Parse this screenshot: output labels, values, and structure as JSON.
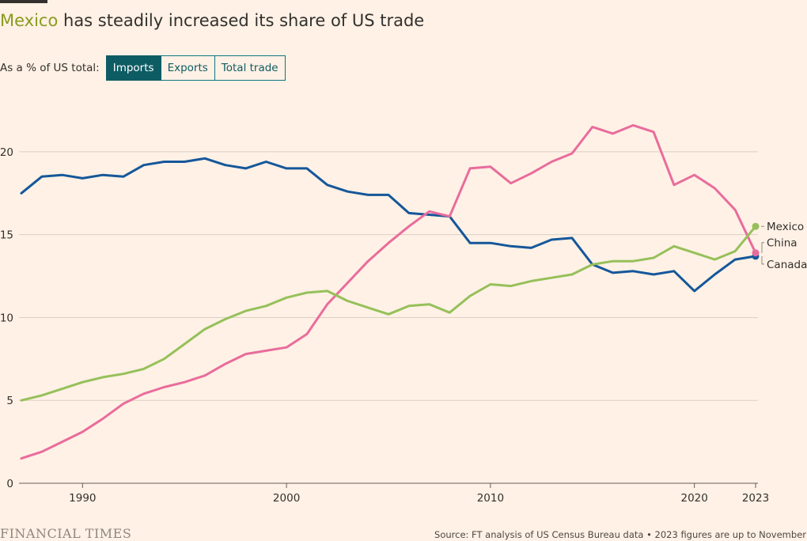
{
  "title": {
    "highlight": "Mexico",
    "rest": " has steadily increased its share of US trade"
  },
  "controls": {
    "label": "As a % of US total:",
    "options": [
      "Imports",
      "Exports",
      "Total trade"
    ],
    "selected": "Imports"
  },
  "footer": {
    "brand": "FINANCIAL TIMES",
    "source": "Source: FT analysis of US Census Bureau data • 2023 figures are up to November"
  },
  "colors": {
    "background": "#fff1e5",
    "Mexico": "#96c05a",
    "China": "#e96c9c",
    "Canada": "#15579a",
    "grid": "#dbcfc4",
    "selected_button": "#0d5c63"
  },
  "chart_data": {
    "type": "line",
    "title": "Mexico has steadily increased its share of US trade",
    "ylabel": "As a % of US total: Imports",
    "xlabel": "",
    "ylim": [
      0,
      22
    ],
    "xlim": [
      1987,
      2023
    ],
    "yticks": [
      0,
      5,
      10,
      15,
      20
    ],
    "xticks": [
      1990,
      2000,
      2010,
      2020,
      2023
    ],
    "grid": "horizontal",
    "legend": "direct labels at line ends (right)",
    "x": [
      1987,
      1988,
      1989,
      1990,
      1991,
      1992,
      1993,
      1994,
      1995,
      1996,
      1997,
      1998,
      1999,
      2000,
      2001,
      2002,
      2003,
      2004,
      2005,
      2006,
      2007,
      2008,
      2009,
      2010,
      2011,
      2012,
      2013,
      2014,
      2015,
      2016,
      2017,
      2018,
      2019,
      2020,
      2021,
      2022,
      2023
    ],
    "series": [
      {
        "name": "Canada",
        "values": [
          17.5,
          18.5,
          18.6,
          18.4,
          18.6,
          18.5,
          19.2,
          19.4,
          19.4,
          19.6,
          19.2,
          19.0,
          19.4,
          19.0,
          19.0,
          18.0,
          17.6,
          17.4,
          17.4,
          16.3,
          16.2,
          16.1,
          14.5,
          14.5,
          14.3,
          14.2,
          14.7,
          14.8,
          13.2,
          12.7,
          12.8,
          12.6,
          12.8,
          11.6,
          12.6,
          13.5,
          13.7
        ]
      },
      {
        "name": "China",
        "values": [
          1.5,
          1.9,
          2.5,
          3.1,
          3.9,
          4.8,
          5.4,
          5.8,
          6.1,
          6.5,
          7.2,
          7.8,
          8.0,
          8.2,
          9.0,
          10.8,
          12.1,
          13.4,
          14.5,
          15.5,
          16.4,
          16.1,
          19.0,
          19.1,
          18.1,
          18.7,
          19.4,
          19.9,
          21.5,
          21.1,
          21.6,
          21.2,
          18.0,
          18.6,
          17.8,
          16.5,
          13.9
        ]
      },
      {
        "name": "Mexico",
        "values": [
          5.0,
          5.3,
          5.7,
          6.1,
          6.4,
          6.6,
          6.9,
          7.5,
          8.4,
          9.3,
          9.9,
          10.4,
          10.7,
          11.2,
          11.5,
          11.6,
          11.0,
          10.6,
          10.2,
          10.7,
          10.8,
          10.3,
          11.3,
          12.0,
          11.9,
          12.2,
          12.4,
          12.6,
          13.2,
          13.4,
          13.4,
          13.6,
          14.3,
          13.9,
          13.5,
          14.0,
          15.5
        ]
      }
    ]
  }
}
